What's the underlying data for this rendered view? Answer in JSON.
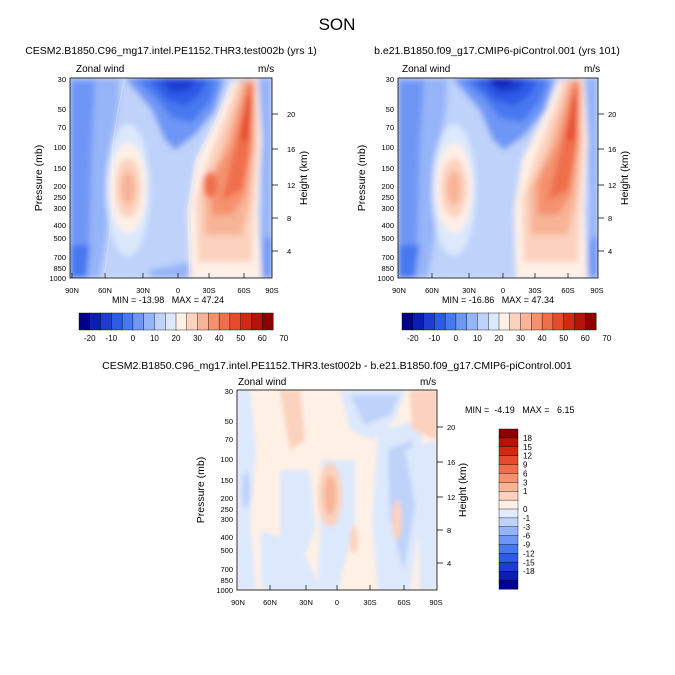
{
  "figure_title": "SON",
  "chart_data": [
    {
      "type": "heatmap",
      "id": "p1",
      "title": "CESM2.B1850.C96_mg17.intel.PE1152.THR3.test002b (yrs 1)",
      "left_label": "Zonal wind",
      "right_label": "m/s",
      "ylabel": "Pressure (mb)",
      "ylabel_right": "Height (km)",
      "xticks": [
        "90N",
        "60N",
        "30N",
        "0",
        "30S",
        "60S",
        "90S"
      ],
      "yticks": [
        "30",
        "50",
        "70",
        "100",
        "150",
        "200",
        "250",
        "300",
        "400",
        "500",
        "700",
        "850",
        "1000"
      ],
      "yticks_right": [
        "20",
        "16",
        "12",
        "8",
        "4"
      ],
      "min_max_text": "MIN = -13.98   MAX = 47.24",
      "levels": [
        -20,
        -15,
        -10,
        -5,
        0,
        5,
        10,
        15,
        20,
        25,
        30,
        35,
        40,
        45,
        50,
        55,
        60,
        65,
        70
      ]
    },
    {
      "type": "heatmap",
      "id": "p2",
      "title": "b.e21.B1850.f09_g17.CMIP6-piControl.001 (yrs 101)",
      "left_label": "Zonal wind",
      "right_label": "m/s",
      "ylabel": "Pressure (mb)",
      "ylabel_right": "Height (km)",
      "xticks": [
        "90N",
        "60N",
        "30N",
        "0",
        "30S",
        "60S",
        "90S"
      ],
      "yticks": [
        "30",
        "50",
        "70",
        "100",
        "150",
        "200",
        "250",
        "300",
        "400",
        "500",
        "700",
        "850",
        "1000"
      ],
      "yticks_right": [
        "20",
        "16",
        "12",
        "8",
        "4"
      ],
      "min_max_text": "MIN = -16.86   MAX = 47.34",
      "levels": [
        -20,
        -15,
        -10,
        -5,
        0,
        5,
        10,
        15,
        20,
        25,
        30,
        35,
        40,
        45,
        50,
        55,
        60,
        65,
        70
      ]
    },
    {
      "type": "heatmap",
      "id": "p3",
      "title": "CESM2.B1850.C96_mg17.intel.PE1152.THR3.test002b - b.e21.B1850.f09_g17.CMIP6-piControl.001",
      "left_label": "Zonal wind",
      "right_label": "m/s",
      "ylabel": "Pressure (mb)",
      "ylabel_right": "Height (km)",
      "xticks": [
        "90N",
        "60N",
        "30N",
        "0",
        "30S",
        "60S",
        "90S"
      ],
      "yticks": [
        "30",
        "50",
        "70",
        "100",
        "150",
        "200",
        "250",
        "300",
        "400",
        "500",
        "700",
        "850",
        "1000"
      ],
      "yticks_right": [
        "20",
        "16",
        "12",
        "8",
        "4"
      ],
      "min_max_text": "MIN =  -4.19   MAX =   6.15",
      "levels": [
        -18,
        -15,
        -12,
        -9,
        -6,
        -3,
        -1,
        0,
        1,
        3,
        6,
        9,
        12,
        15,
        18
      ]
    }
  ],
  "colorbar_top": {
    "labels": [
      "-20",
      "-10",
      "0",
      "10",
      "20",
      "30",
      "40",
      "50",
      "60",
      "70"
    ],
    "colors": [
      "#00008c",
      "#0a1eb4",
      "#1e3cd2",
      "#2d5ae6",
      "#4678f0",
      "#6e96f5",
      "#96b4f8",
      "#bed2fa",
      "#dce8fc",
      "#fff0e6",
      "#fbd2be",
      "#f8b496",
      "#f5916e",
      "#f06e4b",
      "#e64b2d",
      "#d22814",
      "#b41405",
      "#8c0000"
    ]
  },
  "colorbar_diff": {
    "labels": [
      "18",
      "15",
      "12",
      "9",
      "6",
      "3",
      "1",
      "0",
      "-1",
      "-3",
      "-6",
      "-9",
      "-12",
      "-15",
      "-18"
    ],
    "colors": [
      "#8c0000",
      "#b41405",
      "#d22814",
      "#e64b2d",
      "#f06e4b",
      "#f5916e",
      "#f8b496",
      "#fbd2be",
      "#fff0e6",
      "#e1ebfc",
      "#bed2fa",
      "#96b4f8",
      "#6e96f5",
      "#4678f0",
      "#2d5ae6",
      "#1e3cd2",
      "#0a1eb4",
      "#00008c"
    ]
  }
}
